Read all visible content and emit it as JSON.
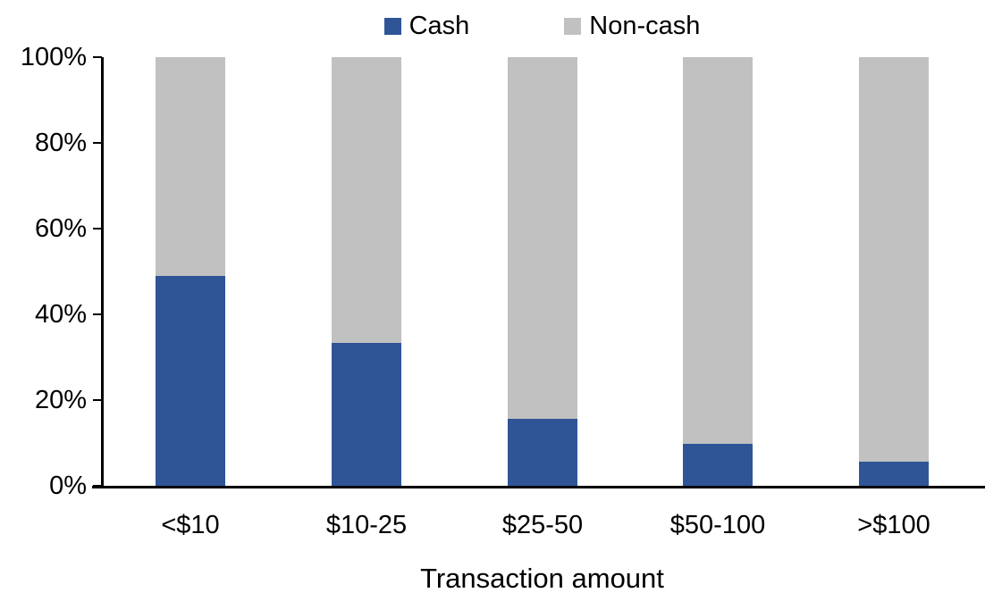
{
  "chart_data": {
    "type": "bar",
    "stacked": "100%",
    "title": "",
    "xlabel": "Transaction amount",
    "ylabel": "",
    "categories": [
      "<$10",
      "$10-25",
      "$25-50",
      "$50-100",
      ">$100"
    ],
    "series": [
      {
        "name": "Cash",
        "color": "#2F5597",
        "values": [
          49,
          33.4,
          15.6,
          9.8,
          5.6
        ]
      },
      {
        "name": "Non-cash",
        "color": "#C1C1C1",
        "values": [
          51,
          66.6,
          84.4,
          90.2,
          94.4
        ]
      }
    ],
    "ylim": [
      0,
      100
    ],
    "y_ticks": [
      "0%",
      "20%",
      "40%",
      "60%",
      "80%",
      "100%"
    ],
    "grid": false,
    "legend_position": "top-center",
    "axis_color": "#000000",
    "background_color": "#FFFFFF"
  }
}
